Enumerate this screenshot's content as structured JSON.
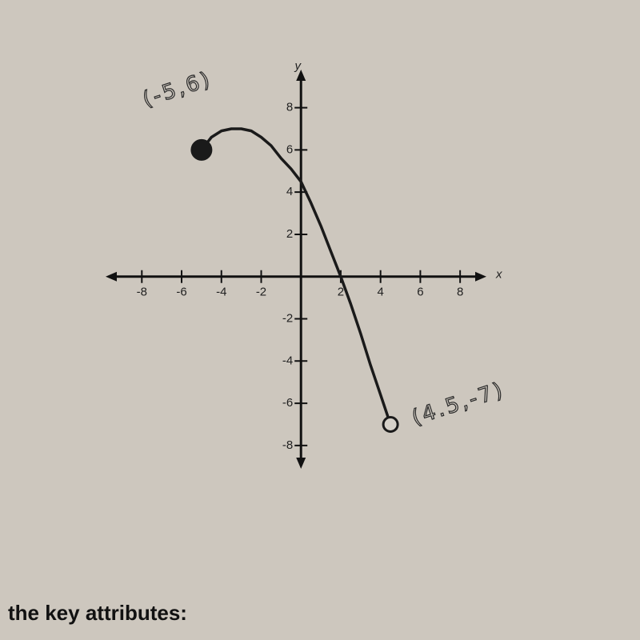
{
  "chart_data": {
    "type": "line",
    "x": [
      -5,
      -4.5,
      -4,
      -3.5,
      -3,
      -2.5,
      -2,
      -1.5,
      -1,
      -0.5,
      0,
      0.5,
      1,
      1.5,
      2,
      2.5,
      3,
      3.5,
      4,
      4.5
    ],
    "values": [
      6,
      6.6,
      6.9,
      7,
      7,
      6.9,
      6.6,
      6.2,
      5.6,
      5.1,
      4.5,
      3.5,
      2.4,
      1.2,
      0,
      -1.3,
      -2.7,
      -4.2,
      -5.6,
      -7
    ],
    "color": "#1a1a1a",
    "start_marker": "filled",
    "end_marker": "open",
    "xlim": [
      -9.5,
      9
    ],
    "ylim": [
      -8.8,
      9.5
    ],
    "xticks": [
      -8,
      -6,
      -4,
      -2,
      2,
      4,
      6,
      8
    ],
    "yticks": [
      -8,
      -6,
      -4,
      -2,
      2,
      4,
      6,
      8
    ],
    "x_label": "x",
    "y_label": "y",
    "annotations": [
      "(-5,6)",
      "(4.5,-7)"
    ]
  },
  "caption": "the key attributes:"
}
